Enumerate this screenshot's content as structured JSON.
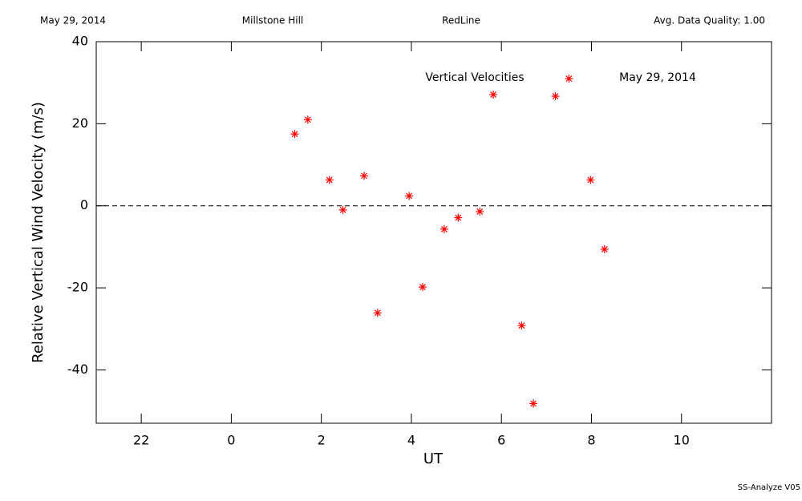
{
  "header": {
    "left": "May 29, 2014",
    "site": "Millstone Hill",
    "filter": "RedLine",
    "quality": "Avg. Data Quality: 1.00"
  },
  "chart_data": {
    "type": "scatter",
    "xlabel": "UT",
    "ylabel": "Relative Vertical Wind Velocity (m/s)",
    "annotations": [
      "Vertical Velocities",
      "May 29, 2014"
    ],
    "xlim": [
      -3,
      12
    ],
    "xticks": [
      {
        "value": -2,
        "label": "22"
      },
      0,
      2,
      4,
      6,
      8,
      10
    ],
    "ylim": [
      -53,
      40
    ],
    "yticks": [
      40,
      20,
      0,
      -20,
      -40
    ],
    "zero_line": true,
    "series": [
      {
        "color": "#ff0000",
        "x": [
          1.41,
          1.7,
          2.18,
          2.48,
          2.95,
          3.25,
          3.95,
          4.25,
          4.73,
          5.04,
          5.52,
          5.82,
          6.45,
          6.71,
          7.2,
          7.5,
          7.98,
          8.29
        ],
        "values": [
          17.5,
          21.0,
          6.3,
          -1.0,
          7.3,
          -26.1,
          2.4,
          -19.8,
          -5.7,
          -2.9,
          -1.4,
          27.1,
          -29.2,
          -48.2,
          26.7,
          31.0,
          6.3,
          -10.6
        ]
      }
    ]
  },
  "footer": "SS-Analyze V05"
}
